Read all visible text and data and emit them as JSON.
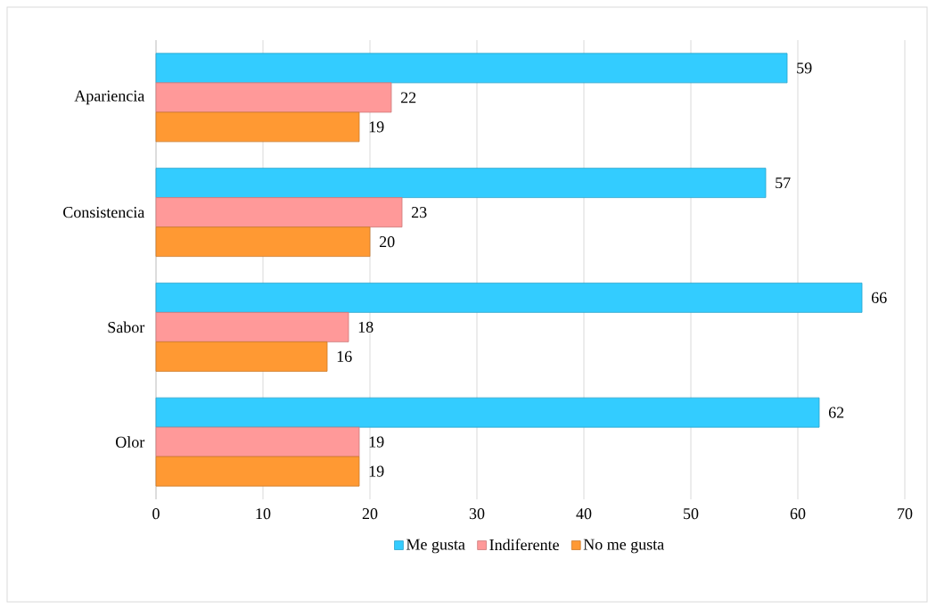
{
  "chart_data": {
    "type": "bar",
    "orientation": "horizontal",
    "categories": [
      "Apariencia",
      "Consistencia",
      "Sabor",
      "Olor"
    ],
    "series": [
      {
        "name": "Me gusta",
        "color": "#33ccff",
        "values": [
          59,
          57,
          66,
          62
        ]
      },
      {
        "name": "Indiferente",
        "color": "#ff9999",
        "values": [
          22,
          23,
          18,
          19
        ]
      },
      {
        "name": "No me gusta",
        "color": "#ff9933",
        "values": [
          19,
          20,
          16,
          19
        ]
      }
    ],
    "xlim": [
      0,
      70
    ],
    "xticks": [
      0,
      10,
      20,
      30,
      40,
      50,
      60,
      70
    ],
    "grid": "x",
    "legend": "bottom",
    "data_labels": true
  }
}
